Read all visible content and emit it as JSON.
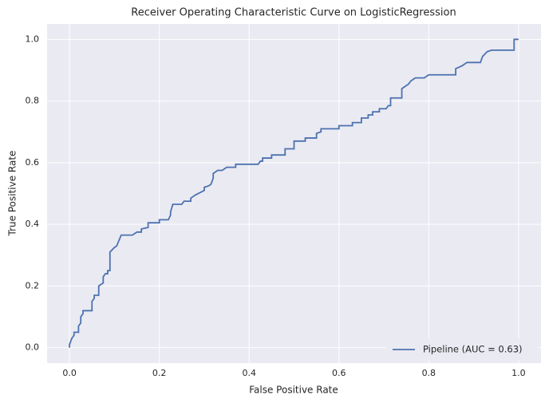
{
  "chart_data": {
    "type": "line",
    "title": "Receiver Operating Characteristic Curve on LogisticRegression",
    "x_label": "False Positive Rate",
    "y_label": "True Positive Rate",
    "xlim": [
      -0.05,
      1.05
    ],
    "ylim": [
      -0.05,
      1.05
    ],
    "xticks": [
      {
        "value": 0,
        "label": "0.0"
      },
      0.2,
      0.4,
      0.6,
      0.8,
      {
        "value": 1,
        "label": "1.0"
      }
    ],
    "yticks": [
      {
        "value": 0,
        "label": "0.0"
      },
      0.2,
      0.4,
      0.6,
      0.8,
      {
        "value": 1,
        "label": "1.0"
      }
    ],
    "grid": true,
    "legend": "lower right",
    "x": [
      0,
      0,
      0.005,
      0.01,
      0.01,
      0.02,
      0.02,
      0.025,
      0.025,
      0.03,
      0.03,
      0.05,
      0.05,
      0.055,
      0.055,
      0.065,
      0.065,
      0.075,
      0.075,
      0.08,
      0.085,
      0.085,
      0.09,
      0.09,
      0.1,
      0.105,
      0.115,
      0.14,
      0.15,
      0.16,
      0.16,
      0.175,
      0.175,
      0.2,
      0.2,
      0.22,
      0.225,
      0.225,
      0.23,
      0.25,
      0.255,
      0.27,
      0.27,
      0.28,
      0.3,
      0.3,
      0.31,
      0.315,
      0.32,
      0.32,
      0.33,
      0.34,
      0.35,
      0.37,
      0.37,
      0.42,
      0.425,
      0.43,
      0.43,
      0.45,
      0.45,
      0.48,
      0.48,
      0.5,
      0.5,
      0.525,
      0.525,
      0.55,
      0.55,
      0.56,
      0.56,
      0.6,
      0.6,
      0.63,
      0.63,
      0.65,
      0.65,
      0.665,
      0.665,
      0.675,
      0.675,
      0.69,
      0.69,
      0.705,
      0.71,
      0.715,
      0.715,
      0.74,
      0.74,
      0.75,
      0.755,
      0.76,
      0.77,
      0.79,
      0.8,
      0.86,
      0.86,
      0.875,
      0.885,
      0.915,
      0.92,
      0.93,
      0.94,
      0.99,
      0.99,
      1.0
    ],
    "series": [
      {
        "name": "Pipeline (AUC = 0.63)",
        "color": "#4c72b0",
        "values": [
          0,
          0.01,
          0.03,
          0.04,
          0.05,
          0.05,
          0.07,
          0.08,
          0.1,
          0.11,
          0.12,
          0.12,
          0.15,
          0.16,
          0.17,
          0.17,
          0.2,
          0.21,
          0.23,
          0.24,
          0.24,
          0.25,
          0.25,
          0.31,
          0.325,
          0.33,
          0.365,
          0.365,
          0.375,
          0.375,
          0.385,
          0.39,
          0.405,
          0.405,
          0.415,
          0.415,
          0.43,
          0.44,
          0.465,
          0.465,
          0.475,
          0.475,
          0.485,
          0.495,
          0.51,
          0.52,
          0.525,
          0.53,
          0.55,
          0.565,
          0.575,
          0.575,
          0.585,
          0.585,
          0.595,
          0.595,
          0.605,
          0.605,
          0.615,
          0.615,
          0.625,
          0.625,
          0.645,
          0.645,
          0.67,
          0.67,
          0.68,
          0.68,
          0.695,
          0.7,
          0.71,
          0.71,
          0.72,
          0.72,
          0.73,
          0.73,
          0.745,
          0.745,
          0.755,
          0.755,
          0.765,
          0.765,
          0.775,
          0.775,
          0.785,
          0.785,
          0.81,
          0.81,
          0.84,
          0.85,
          0.855,
          0.865,
          0.875,
          0.875,
          0.885,
          0.885,
          0.905,
          0.915,
          0.925,
          0.925,
          0.945,
          0.96,
          0.965,
          0.965,
          1.0,
          1.0
        ]
      }
    ]
  }
}
